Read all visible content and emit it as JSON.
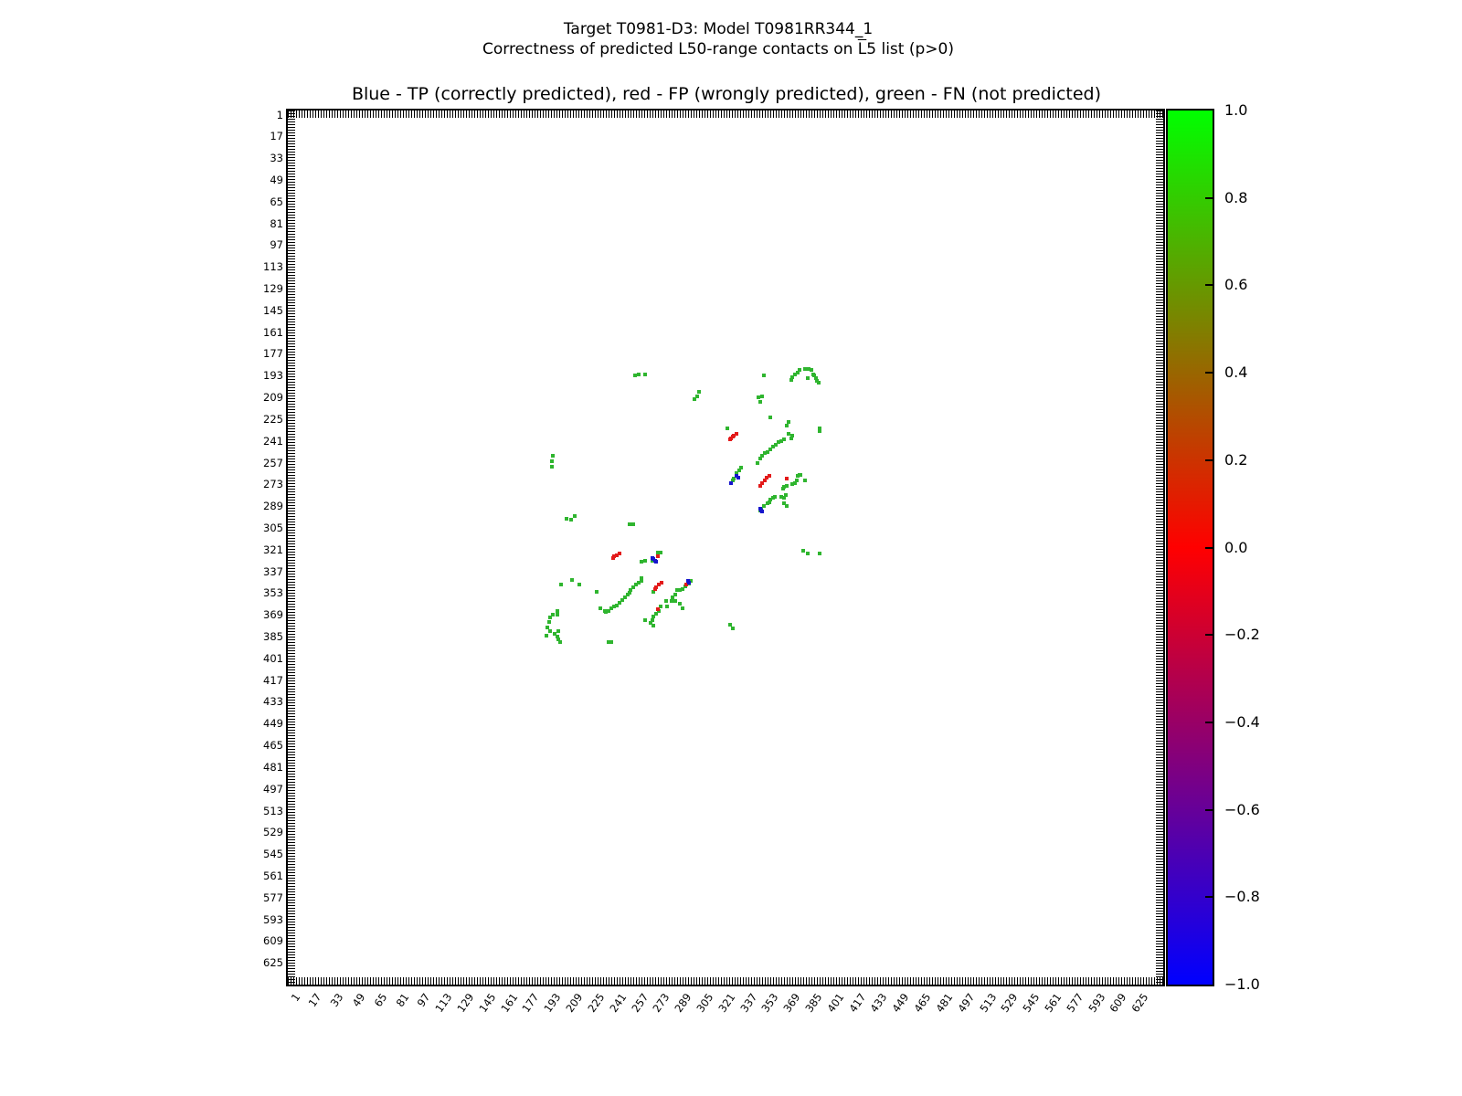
{
  "figure": {
    "suptitle_line1": "Target T0981-D3: Model T0981RR344_1",
    "suptitle_line2_pre": "Correctness of predicted L50-range contacts on ",
    "suptitle_line2_overlined": "L",
    "suptitle_line2_post": "5 list (p>0)",
    "axes_title": "Blue - TP (correctly predicted), red - FP (wrongly predicted), green - FN (not predicted)"
  },
  "chart_data": {
    "type": "scatter",
    "title": "Blue - TP (correctly predicted), red - FP (wrongly predicted), green - FN (not predicted)",
    "xlabel": "",
    "ylabel": "",
    "marker": "square-4px",
    "grid": false,
    "axis_range": [
      -2,
      641
    ],
    "y_axis_inverted": true,
    "x_ticks": [
      1,
      17,
      33,
      49,
      65,
      81,
      97,
      113,
      129,
      145,
      161,
      177,
      193,
      209,
      225,
      241,
      257,
      273,
      289,
      305,
      321,
      337,
      353,
      369,
      385,
      401,
      417,
      433,
      449,
      465,
      481,
      497,
      513,
      529,
      545,
      561,
      577,
      593,
      609,
      625
    ],
    "y_ticks": [
      1,
      17,
      33,
      49,
      65,
      81,
      97,
      113,
      129,
      145,
      161,
      177,
      193,
      209,
      225,
      241,
      257,
      273,
      289,
      305,
      321,
      337,
      353,
      369,
      385,
      401,
      417,
      433,
      449,
      465,
      481,
      497,
      513,
      529,
      545,
      561,
      577,
      593,
      609,
      625
    ],
    "colorbar": {
      "vmin": -1.0,
      "vmax": 1.0,
      "cmap": "brg (blue -> red -> green)",
      "bottom_color": "#0000ff",
      "mid_color": "#ff0000",
      "top_color": "#00ff00",
      "tick_labels": [
        "1.0",
        "0.8",
        "0.6",
        "0.4",
        "0.2",
        "0.0",
        "−0.2",
        "−0.4",
        "−0.6",
        "−0.8",
        "−1.0"
      ]
    },
    "series": [
      {
        "id": "fn",
        "name": "FN (not predicted)",
        "color": "#2fb52f",
        "value_on_colorbar": 1.0,
        "points": [
          [
            253,
            193
          ],
          [
            256,
            192
          ],
          [
            261,
            192
          ],
          [
            193,
            252
          ],
          [
            192,
            256
          ],
          [
            192,
            260
          ],
          [
            209,
            296
          ],
          [
            206,
            299
          ],
          [
            203,
            298
          ],
          [
            249,
            302
          ],
          [
            252,
            302
          ],
          [
            207,
            343
          ],
          [
            212,
            347
          ],
          [
            199,
            347
          ],
          [
            225,
            352
          ],
          [
            228,
            364
          ],
          [
            231,
            366
          ],
          [
            191,
            371
          ],
          [
            193,
            369
          ],
          [
            196,
            369
          ],
          [
            190,
            374
          ],
          [
            196,
            366
          ],
          [
            189,
            378
          ],
          [
            191,
            381
          ],
          [
            188,
            384
          ],
          [
            194,
            383
          ],
          [
            197,
            381
          ],
          [
            196,
            385
          ],
          [
            197,
            387
          ],
          [
            198,
            389
          ],
          [
            234,
            389
          ],
          [
            236,
            389
          ],
          [
            258,
            344
          ],
          [
            256,
            345
          ],
          [
            254,
            347
          ],
          [
            252,
            349
          ],
          [
            250,
            351
          ],
          [
            249,
            353
          ],
          [
            248,
            354
          ],
          [
            246,
            356
          ],
          [
            244,
            358
          ],
          [
            242,
            360
          ],
          [
            240,
            362
          ],
          [
            238,
            363
          ],
          [
            236,
            364
          ],
          [
            234,
            366
          ],
          [
            232,
            367
          ],
          [
            258,
            330
          ],
          [
            261,
            329
          ],
          [
            266,
            329
          ],
          [
            270,
            323
          ],
          [
            272,
            323
          ],
          [
            258,
            342
          ],
          [
            267,
            352
          ],
          [
            272,
            363
          ],
          [
            271,
            366
          ],
          [
            269,
            368
          ],
          [
            267,
            370
          ],
          [
            266,
            373
          ],
          [
            265,
            375
          ],
          [
            267,
            377
          ],
          [
            261,
            373
          ],
          [
            294,
            344
          ],
          [
            293,
            346
          ],
          [
            290,
            348
          ],
          [
            288,
            350
          ],
          [
            286,
            351
          ],
          [
            284,
            351
          ],
          [
            283,
            354
          ],
          [
            281,
            356
          ],
          [
            280,
            359
          ],
          [
            283,
            359
          ],
          [
            276,
            359
          ],
          [
            277,
            363
          ],
          [
            286,
            361
          ],
          [
            288,
            364
          ],
          [
            345,
            292
          ],
          [
            346,
            291
          ],
          [
            348,
            289
          ],
          [
            351,
            287
          ],
          [
            352,
            286
          ],
          [
            363,
            287
          ],
          [
            365,
            289
          ],
          [
            323,
            376
          ],
          [
            325,
            379
          ],
          [
            377,
            322
          ],
          [
            380,
            324
          ],
          [
            389,
            324
          ],
          [
            368,
            196
          ],
          [
            369,
            194
          ],
          [
            371,
            192
          ],
          [
            373,
            191
          ],
          [
            374,
            189
          ],
          [
            378,
            188
          ],
          [
            381,
            188
          ],
          [
            383,
            189
          ],
          [
            384,
            192
          ],
          [
            385,
            193
          ],
          [
            386,
            195
          ],
          [
            387,
            197
          ],
          [
            388,
            198
          ],
          [
            380,
            195
          ],
          [
            348,
            193
          ],
          [
            347,
            208
          ],
          [
            345,
            212
          ],
          [
            353,
            224
          ],
          [
            297,
            210
          ],
          [
            300,
            205
          ],
          [
            299,
            208
          ],
          [
            344,
            209
          ],
          [
            321,
            232
          ],
          [
            366,
            227
          ],
          [
            365,
            230
          ],
          [
            366,
            236
          ],
          [
            369,
            237
          ],
          [
            368,
            239
          ],
          [
            363,
            240
          ],
          [
            361,
            241
          ],
          [
            359,
            242
          ],
          [
            357,
            244
          ],
          [
            355,
            245
          ],
          [
            353,
            247
          ],
          [
            351,
            249
          ],
          [
            349,
            250
          ],
          [
            347,
            252
          ],
          [
            345,
            254
          ],
          [
            343,
            257
          ],
          [
            331,
            261
          ],
          [
            330,
            263
          ],
          [
            328,
            265
          ],
          [
            326,
            269
          ],
          [
            325,
            270
          ],
          [
            374,
            266
          ],
          [
            375,
            266
          ],
          [
            373,
            267
          ],
          [
            372,
            270
          ],
          [
            378,
            270
          ],
          [
            371,
            272
          ],
          [
            369,
            273
          ],
          [
            365,
            274
          ],
          [
            363,
            275
          ],
          [
            362,
            276
          ],
          [
            364,
            281
          ],
          [
            361,
            282
          ],
          [
            363,
            283
          ],
          [
            353,
            284
          ],
          [
            355,
            283
          ],
          [
            356,
            282
          ],
          [
            389,
            232
          ],
          [
            389,
            234
          ]
        ]
      },
      {
        "id": "fp",
        "name": "FP (wrongly predicted)",
        "color": "#e31a1a",
        "value_on_colorbar": 0.0,
        "points": [
          [
            323,
            240
          ],
          [
            324,
            239
          ],
          [
            325,
            238
          ],
          [
            326,
            237
          ],
          [
            328,
            236
          ],
          [
            345,
            274
          ],
          [
            347,
            272
          ],
          [
            349,
            270
          ],
          [
            350,
            268
          ],
          [
            352,
            267
          ],
          [
            365,
            269
          ],
          [
            237,
            327
          ],
          [
            238,
            326
          ],
          [
            240,
            325
          ],
          [
            242,
            324
          ],
          [
            270,
            326
          ],
          [
            268,
            350
          ],
          [
            269,
            349
          ],
          [
            271,
            347
          ],
          [
            273,
            345
          ],
          [
            270,
            365
          ],
          [
            291,
            347
          ]
        ]
      },
      {
        "id": "tp",
        "name": "TP (correctly predicted)",
        "color": "#1515cc",
        "value_on_colorbar": -1.0,
        "points": [
          [
            328,
            267
          ],
          [
            329,
            268
          ],
          [
            324,
            272
          ],
          [
            345,
            291
          ],
          [
            346,
            292
          ],
          [
            347,
            293
          ],
          [
            266,
            327
          ],
          [
            267,
            328
          ],
          [
            268,
            329
          ],
          [
            269,
            330
          ],
          [
            292,
            344
          ],
          [
            293,
            345
          ]
        ]
      }
    ]
  }
}
